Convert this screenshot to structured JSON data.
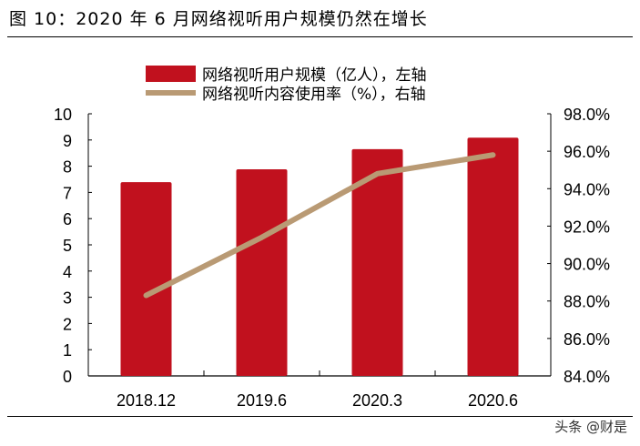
{
  "title": "图 10：2020 年 6 月网络视听用户规模仍然在增长",
  "watermark": "头条 @财是",
  "chart_data": {
    "type": "bar+line",
    "categories": [
      "2018.12",
      "2019.6",
      "2020.3",
      "2020.6"
    ],
    "series": [
      {
        "name": "网络视听用户规模（亿人），左轴",
        "type": "bar",
        "axis": "left",
        "color": "#C1111E",
        "values": [
          7.39,
          7.88,
          8.65,
          9.09
        ]
      },
      {
        "name": "网络视听内容使用率（%），右轴",
        "type": "line",
        "axis": "right",
        "color": "#B99A74",
        "values": [
          88.3,
          91.4,
          94.8,
          95.8
        ]
      }
    ],
    "left_axis": {
      "range": [
        0,
        10
      ],
      "ticks": [
        "0",
        "1",
        "2",
        "3",
        "4",
        "5",
        "6",
        "7",
        "8",
        "9",
        "10"
      ]
    },
    "right_axis": {
      "range": [
        84,
        98
      ],
      "ticks": [
        "84.0%",
        "86.0%",
        "88.0%",
        "90.0%",
        "92.0%",
        "94.0%",
        "96.0%",
        "98.0%"
      ]
    },
    "legend_position": "top-center",
    "grid": false
  }
}
